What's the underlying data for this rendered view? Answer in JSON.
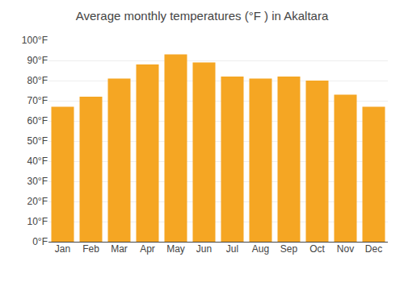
{
  "chart_data": {
    "type": "bar",
    "title": "Average monthly temperatures (°F ) in Akaltara",
    "categories": [
      "Jan",
      "Feb",
      "Mar",
      "Apr",
      "May",
      "Jun",
      "Jul",
      "Aug",
      "Sep",
      "Oct",
      "Nov",
      "Dec"
    ],
    "values": [
      67,
      72,
      81,
      88,
      93,
      89,
      82,
      81,
      82,
      80,
      73,
      67
    ],
    "color": "#F5A623",
    "ylim": [
      0,
      100
    ],
    "yticks": [
      {
        "value": 0,
        "label": "0°F"
      },
      {
        "value": 10,
        "label": "10°F"
      },
      {
        "value": 20,
        "label": "20°F"
      },
      {
        "value": 30,
        "label": "30°F"
      },
      {
        "value": 40,
        "label": "40°F"
      },
      {
        "value": 50,
        "label": "50°F"
      },
      {
        "value": 60,
        "label": "60°F"
      },
      {
        "value": 70,
        "label": "70°F"
      },
      {
        "value": 80,
        "label": "80°F"
      },
      {
        "value": 90,
        "label": "90°F"
      },
      {
        "value": 100,
        "label": "100°F"
      }
    ],
    "grid": true
  }
}
